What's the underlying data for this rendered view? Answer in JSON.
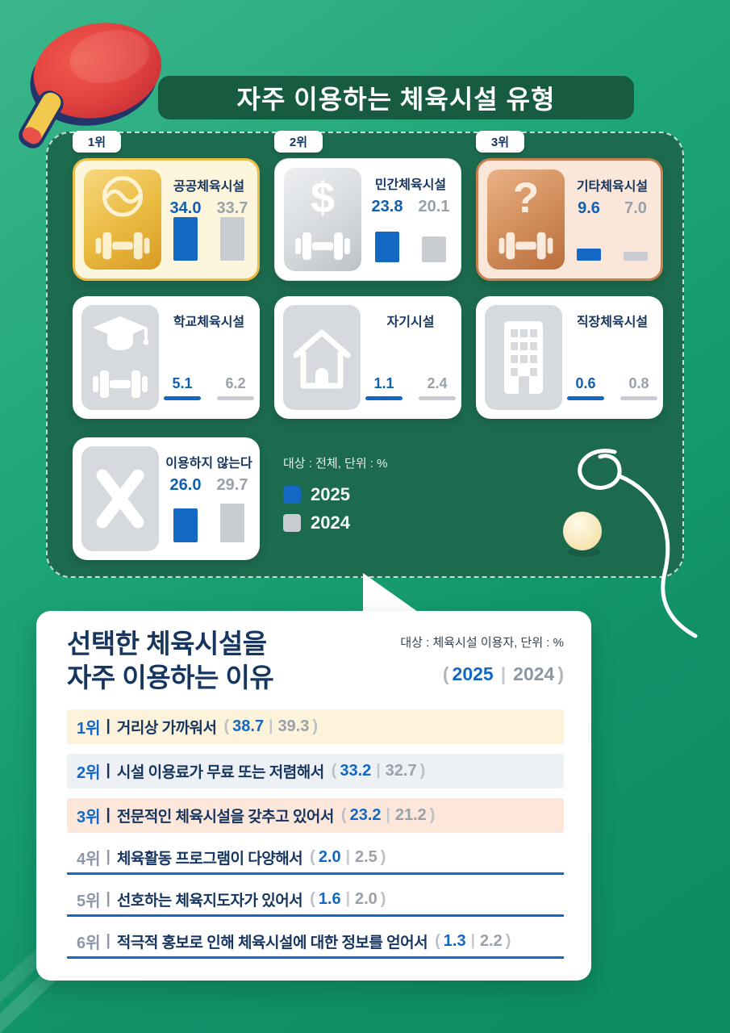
{
  "colors": {
    "accent_blue_2025": "#1368C4",
    "muted_gray_2024": "#C9CDD2",
    "navy_text": "#16355F",
    "board_green": "#1D6B4E",
    "header_green": "#175B40",
    "gold_border": "#EEBC45",
    "bronze_border": "#C97F52"
  },
  "header": {
    "title": "자주 이용하는 체육시설 유형"
  },
  "facility": {
    "note": "대상 : 전체, 단위 : %",
    "legend": [
      {
        "label": "2025"
      },
      {
        "label": "2024"
      }
    ],
    "cards": [
      {
        "rank": "1위",
        "name": "공공체육시설",
        "v2025": "34.0",
        "v2024": "33.7"
      },
      {
        "rank": "2위",
        "name": "민간체육시설",
        "v2025": "23.8",
        "v2024": "20.1"
      },
      {
        "rank": "3위",
        "name": "기타체육시설",
        "v2025": "9.6",
        "v2024": "7.0"
      },
      {
        "name": "학교체육시설",
        "v2025": "5.1",
        "v2024": "6.2"
      },
      {
        "name": "자기시설",
        "v2025": "1.1",
        "v2024": "2.4"
      },
      {
        "name": "직장체육시설",
        "v2025": "0.6",
        "v2024": "0.8"
      },
      {
        "name": "이용하지 않는다",
        "v2025": "26.0",
        "v2024": "29.7"
      }
    ]
  },
  "reasons": {
    "title_line1": "선택한 체육시설을",
    "title_line2": "자주 이용하는 이유",
    "note": "대상 : 체육시설 이용자, 단위 : %",
    "years": {
      "open": "(",
      "y2025": "2025",
      "sep": "|",
      "y2024": "2024",
      "close": ")"
    },
    "strings": {
      "divider": "|",
      "open": "(",
      "sep": "|",
      "close": ")"
    },
    "items": [
      {
        "rank": "1위",
        "text": "거리상 가까워서",
        "v2025": "38.7",
        "v2024": "39.3"
      },
      {
        "rank": "2위",
        "text": "시설 이용료가 무료 또는 저렴해서",
        "v2025": "33.2",
        "v2024": "32.7"
      },
      {
        "rank": "3위",
        "text": "전문적인 체육시설을 갖추고 있어서",
        "v2025": "23.2",
        "v2024": "21.2"
      },
      {
        "rank": "4위",
        "text": "체육활동 프로그램이 다양해서",
        "v2025": "2.0",
        "v2024": "2.5"
      },
      {
        "rank": "5위",
        "text": "선호하는 체육지도자가 있어서",
        "v2025": "1.6",
        "v2024": "2.0"
      },
      {
        "rank": "6위",
        "text": "적극적 홍보로 인해 체육시설에 대한 정보를 얻어서",
        "v2025": "1.3",
        "v2024": "2.2"
      }
    ]
  },
  "chart_data": [
    {
      "type": "bar",
      "title": "자주 이용하는 체육시설 유형",
      "note": "대상 : 전체, 단위 : %",
      "unit": "%",
      "categories": [
        "공공체육시설",
        "민간체육시설",
        "기타체육시설",
        "학교체육시설",
        "자기시설",
        "직장체육시설",
        "이용하지 않는다"
      ],
      "series": [
        {
          "name": "2025",
          "values": [
            34.0,
            23.8,
            9.6,
            5.1,
            1.1,
            0.6,
            26.0
          ]
        },
        {
          "name": "2024",
          "values": [
            33.7,
            20.1,
            7.0,
            6.2,
            2.4,
            0.8,
            29.7
          ]
        }
      ],
      "legend_position": "bottom-left-of-grid",
      "grid": false
    },
    {
      "type": "bar",
      "title": "선택한 체육시설을 자주 이용하는 이유",
      "note": "대상 : 체육시설 이용자, 단위 : %",
      "unit": "%",
      "categories": [
        "거리상 가까워서",
        "시설 이용료가 무료 또는 저렴해서",
        "전문적인 체육시설을 갖추고 있어서",
        "체육활동 프로그램이 다양해서",
        "선호하는 체육지도자가 있어서",
        "적극적 홍보로 인해 체육시설에 대한 정보를 얻어서"
      ],
      "series": [
        {
          "name": "2025",
          "values": [
            38.7,
            33.2,
            23.2,
            2.0,
            1.6,
            1.3
          ]
        },
        {
          "name": "2024",
          "values": [
            39.3,
            32.7,
            21.2,
            2.5,
            2.0,
            2.2
          ]
        }
      ],
      "legend_position": "top-right",
      "grid": false
    }
  ]
}
